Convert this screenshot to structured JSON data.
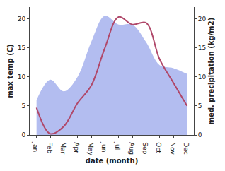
{
  "chart_data": {
    "type": "line",
    "x_label": "date (month)",
    "y_label": "max temp (C)",
    "y2_label": "med. precipitation (kg/m2)",
    "categories": [
      "Jan",
      "Feb",
      "Mar",
      "Apr",
      "May",
      "Jun",
      "Jul",
      "Aug",
      "Sep",
      "Oct",
      "Nov",
      "Dec"
    ],
    "series": [
      {
        "type": "area",
        "axis": "y2",
        "color": "#b3bdf0",
        "values": [
          6,
          9.5,
          7.5,
          10,
          16,
          20.5,
          19,
          19,
          16,
          12,
          11.5,
          10.5
        ]
      },
      {
        "type": "line",
        "color": "#b0486a",
        "values": [
          4.7,
          0.2,
          1.5,
          5.5,
          8.5,
          15,
          20.3,
          19,
          19.3,
          13,
          9,
          5
        ]
      }
    ],
    "ylim": [
      0,
      22
    ],
    "yticks": [
      0,
      5,
      10,
      15,
      20
    ],
    "y2lim": [
      0,
      22
    ],
    "y2ticks": [
      0,
      5,
      10,
      15,
      20
    ],
    "grid": false
  }
}
